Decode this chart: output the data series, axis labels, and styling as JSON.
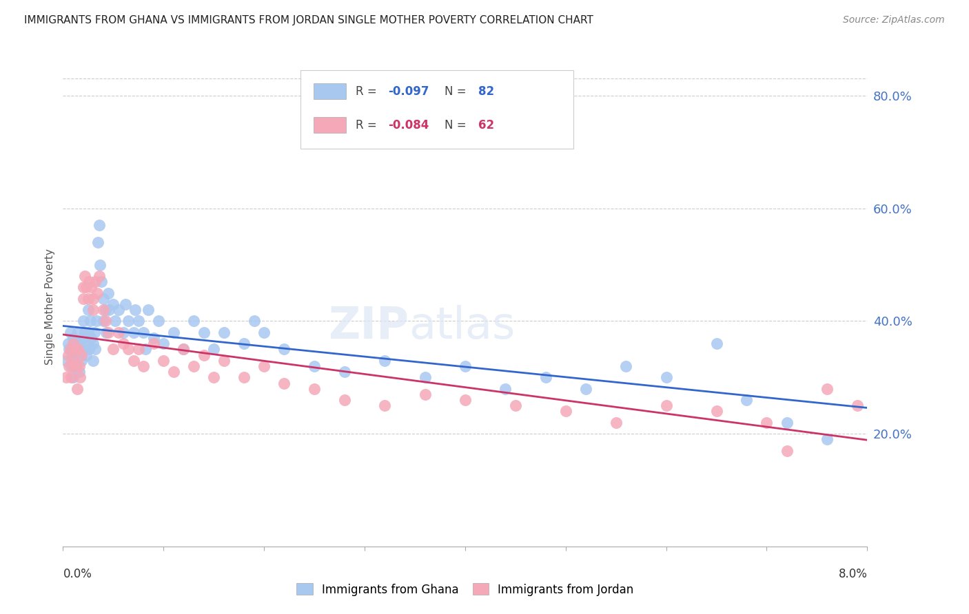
{
  "title": "IMMIGRANTS FROM GHANA VS IMMIGRANTS FROM JORDAN SINGLE MOTHER POVERTY CORRELATION CHART",
  "source": "Source: ZipAtlas.com",
  "ylabel": "Single Mother Poverty",
  "ghana_color": "#a8c8f0",
  "jordan_color": "#f5a8b8",
  "ghana_line_color": "#3366cc",
  "jordan_line_color": "#cc3366",
  "watermark_text": "ZIPatlas",
  "ghana_R": -0.097,
  "ghana_N": 82,
  "jordan_R": -0.084,
  "jordan_N": 62,
  "ylim": [
    0.0,
    0.85
  ],
  "xlim": [
    0.0,
    0.08
  ],
  "yticks": [
    0.2,
    0.4,
    0.6,
    0.8
  ],
  "xtick_labels_bottom": [
    "0.0%",
    "8.0%"
  ],
  "ghana_x": [
    0.0003,
    0.0005,
    0.0006,
    0.0007,
    0.0008,
    0.0009,
    0.001,
    0.001,
    0.0012,
    0.0013,
    0.0014,
    0.0015,
    0.0016,
    0.0016,
    0.0017,
    0.0018,
    0.0019,
    0.002,
    0.002,
    0.0021,
    0.0022,
    0.0023,
    0.0024,
    0.0025,
    0.0025,
    0.0026,
    0.0027,
    0.0028,
    0.003,
    0.003,
    0.0031,
    0.0032,
    0.0033,
    0.0035,
    0.0036,
    0.0037,
    0.0038,
    0.004,
    0.004,
    0.0042,
    0.0043,
    0.0045,
    0.0046,
    0.005,
    0.0052,
    0.0055,
    0.006,
    0.0062,
    0.0065,
    0.007,
    0.0072,
    0.0075,
    0.008,
    0.0082,
    0.0085,
    0.009,
    0.0095,
    0.01,
    0.011,
    0.012,
    0.013,
    0.014,
    0.015,
    0.016,
    0.018,
    0.019,
    0.02,
    0.022,
    0.025,
    0.028,
    0.032,
    0.036,
    0.04,
    0.044,
    0.048,
    0.052,
    0.056,
    0.06,
    0.065,
    0.068,
    0.072,
    0.076
  ],
  "ghana_y": [
    0.33,
    0.36,
    0.35,
    0.38,
    0.32,
    0.34,
    0.37,
    0.3,
    0.36,
    0.33,
    0.35,
    0.38,
    0.34,
    0.31,
    0.36,
    0.33,
    0.35,
    0.4,
    0.37,
    0.35,
    0.38,
    0.34,
    0.36,
    0.42,
    0.38,
    0.35,
    0.4,
    0.37,
    0.36,
    0.33,
    0.38,
    0.35,
    0.4,
    0.54,
    0.57,
    0.5,
    0.47,
    0.44,
    0.4,
    0.42,
    0.38,
    0.45,
    0.42,
    0.43,
    0.4,
    0.42,
    0.38,
    0.43,
    0.4,
    0.38,
    0.42,
    0.4,
    0.38,
    0.35,
    0.42,
    0.37,
    0.4,
    0.36,
    0.38,
    0.35,
    0.4,
    0.38,
    0.35,
    0.38,
    0.36,
    0.4,
    0.38,
    0.35,
    0.32,
    0.31,
    0.33,
    0.3,
    0.32,
    0.28,
    0.3,
    0.28,
    0.32,
    0.3,
    0.36,
    0.26,
    0.22,
    0.19
  ],
  "jordan_x": [
    0.0003,
    0.0005,
    0.0006,
    0.0007,
    0.0008,
    0.0009,
    0.001,
    0.0011,
    0.0012,
    0.0013,
    0.0014,
    0.0015,
    0.0016,
    0.0017,
    0.0018,
    0.002,
    0.002,
    0.0022,
    0.0023,
    0.0025,
    0.0026,
    0.0028,
    0.003,
    0.003,
    0.0032,
    0.0034,
    0.0036,
    0.004,
    0.0042,
    0.0045,
    0.005,
    0.0055,
    0.006,
    0.0065,
    0.007,
    0.0075,
    0.008,
    0.009,
    0.01,
    0.011,
    0.012,
    0.013,
    0.014,
    0.015,
    0.016,
    0.018,
    0.02,
    0.022,
    0.025,
    0.028,
    0.032,
    0.036,
    0.04,
    0.045,
    0.05,
    0.055,
    0.06,
    0.065,
    0.07,
    0.072,
    0.076,
    0.079
  ],
  "jordan_y": [
    0.3,
    0.34,
    0.32,
    0.35,
    0.3,
    0.33,
    0.36,
    0.32,
    0.35,
    0.32,
    0.28,
    0.35,
    0.32,
    0.3,
    0.34,
    0.46,
    0.44,
    0.48,
    0.46,
    0.44,
    0.47,
    0.46,
    0.44,
    0.42,
    0.47,
    0.45,
    0.48,
    0.42,
    0.4,
    0.38,
    0.35,
    0.38,
    0.36,
    0.35,
    0.33,
    0.35,
    0.32,
    0.36,
    0.33,
    0.31,
    0.35,
    0.32,
    0.34,
    0.3,
    0.33,
    0.3,
    0.32,
    0.29,
    0.28,
    0.26,
    0.25,
    0.27,
    0.26,
    0.25,
    0.24,
    0.22,
    0.25,
    0.24,
    0.22,
    0.17,
    0.28,
    0.25
  ]
}
